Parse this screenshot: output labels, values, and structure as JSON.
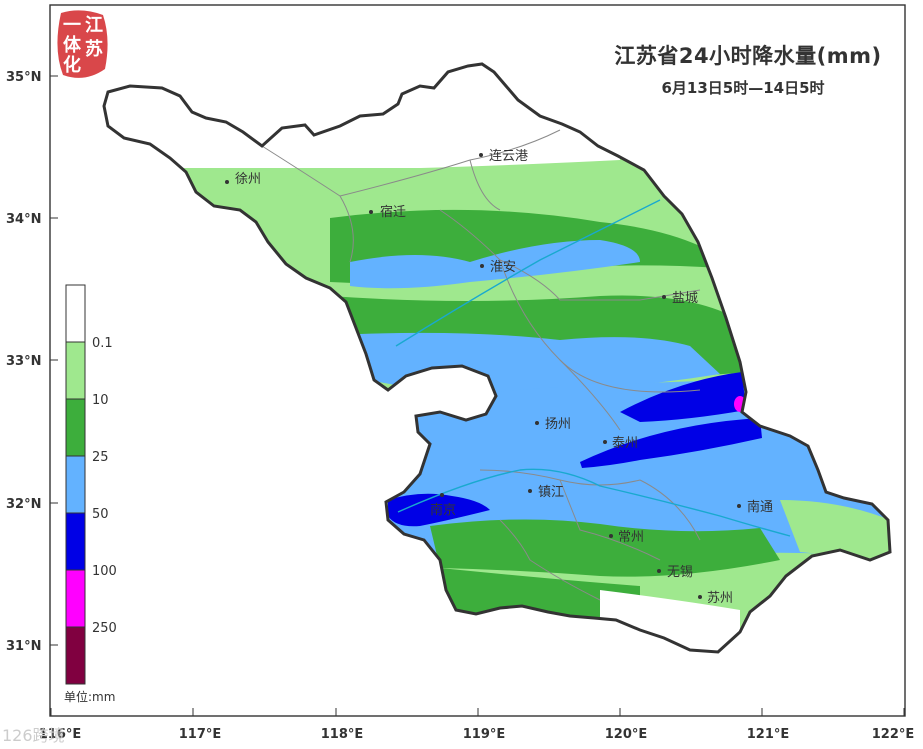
{
  "title": "江苏省24小时降水量(mm)",
  "subtitle": "6月13日5时—14日5时",
  "logo": {
    "chars": [
      "江",
      "苏",
      "一",
      "体",
      "化"
    ],
    "color": "#d9474a"
  },
  "watermark": "126跨境",
  "legend": {
    "unit_label": "单位:mm",
    "bins": [
      {
        "label": "0.1",
        "color": "#ffffff"
      },
      {
        "label": "10",
        "color": "#9fe88e"
      },
      {
        "label": "25",
        "color": "#3dae3c"
      },
      {
        "label": "50",
        "color": "#63b2ff"
      },
      {
        "label": "100",
        "color": "#0000e6"
      },
      {
        "label": "250",
        "color": "#ff00ff"
      },
      {
        "label": "",
        "color": "#800040"
      }
    ]
  },
  "axes": {
    "lon_ticks": [
      "116°E",
      "117°E",
      "118°E",
      "119°E",
      "120°E",
      "121°E",
      "122°E"
    ],
    "lat_ticks": [
      "35°N",
      "34°N",
      "33°N",
      "32°N",
      "31°N"
    ]
  },
  "cities": [
    {
      "name": "徐州"
    },
    {
      "name": "连云港"
    },
    {
      "name": "宿迁"
    },
    {
      "name": "淮安"
    },
    {
      "name": "盐城"
    },
    {
      "name": "扬州"
    },
    {
      "name": "泰州"
    },
    {
      "name": "镇江"
    },
    {
      "name": "南京"
    },
    {
      "name": "南通"
    },
    {
      "name": "常州"
    },
    {
      "name": "无锡"
    },
    {
      "name": "苏州"
    }
  ]
}
